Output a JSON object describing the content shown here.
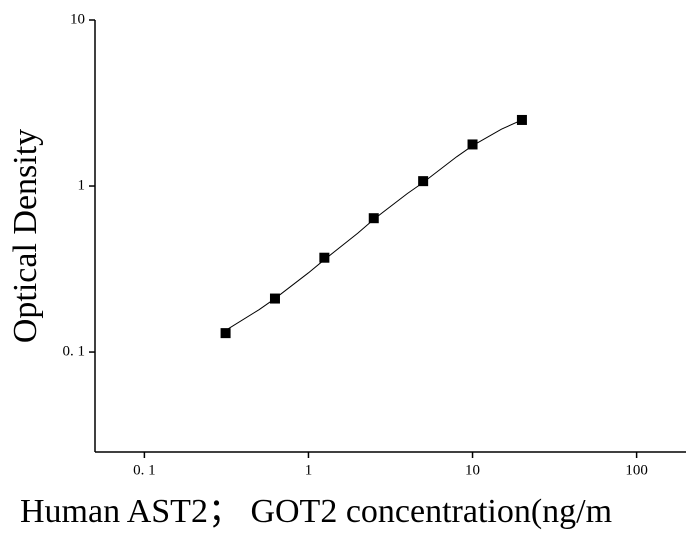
{
  "chart_data": {
    "type": "scatter",
    "x_label": "Human AST2； GOT2 concentration(ng/m",
    "y_label": "Optical Density",
    "x": [
      0.3125,
      0.625,
      1.25,
      2.5,
      5,
      10,
      20
    ],
    "series": [
      {
        "color": "#000000",
        "values": [
          0.13,
          0.21,
          0.37,
          0.64,
          1.07,
          1.78,
          2.5
        ]
      }
    ],
    "curve": {
      "color": "#000000",
      "x": [
        0.3125,
        0.5,
        0.625,
        1,
        1.25,
        2,
        2.5,
        4,
        5,
        8,
        10,
        15,
        20
      ],
      "values": [
        0.135,
        0.18,
        0.21,
        0.3,
        0.36,
        0.52,
        0.63,
        0.9,
        1.05,
        1.5,
        1.75,
        2.2,
        2.5
      ]
    },
    "x_log": true,
    "y_log": true,
    "xlim": [
      0.05,
      200
    ],
    "ylim": [
      0.025,
      10
    ],
    "xticks": [
      {
        "value": 0.1,
        "label": "0. 1"
      },
      1,
      10,
      100
    ],
    "yticks": [
      {
        "value": 0.1,
        "label": "0. 1"
      },
      1,
      10
    ]
  }
}
